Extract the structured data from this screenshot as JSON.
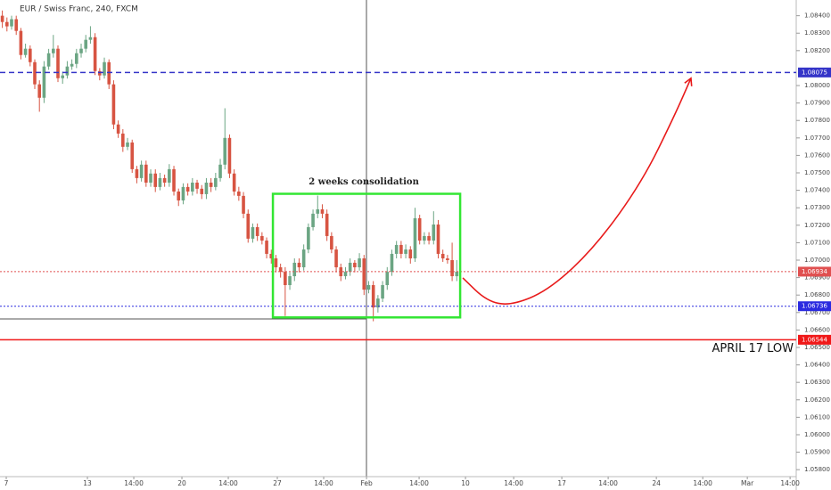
{
  "chart_data": {
    "type": "candlestick",
    "title": "EUR / Swiss Franc, 240, FXCM",
    "up_color": "#6ba583",
    "down_color": "#d75442",
    "xlim": [
      -0.5,
      171.2
    ],
    "ylim": [
      1.0576,
      1.0849
    ],
    "grid": false,
    "xticks": [
      {
        "value": 0.85,
        "label": "7"
      },
      {
        "value": 18.35,
        "label": "13"
      },
      {
        "value": 28.35,
        "label": "14:00"
      },
      {
        "value": 38.73,
        "label": "20"
      },
      {
        "value": 48.73,
        "label": "14:00"
      },
      {
        "value": 59.3,
        "label": "27"
      },
      {
        "value": 69.3,
        "label": "14:00"
      },
      {
        "value": 78.54,
        "label": "Feb"
      },
      {
        "value": 89.88,
        "label": "14:00"
      },
      {
        "value": 99.88,
        "label": "10"
      },
      {
        "value": 110.27,
        "label": "14:00"
      },
      {
        "value": 120.65,
        "label": "17"
      },
      {
        "value": 130.65,
        "label": "14:00"
      },
      {
        "value": 141.04,
        "label": "24"
      },
      {
        "value": 151.04,
        "label": "14:00"
      },
      {
        "value": 160.65,
        "label": "Mar"
      },
      {
        "value": 169.88,
        "label": "14:00"
      }
    ],
    "yticks": [
      {
        "value": 1.084,
        "label": "1.08400"
      },
      {
        "value": 1.083,
        "label": "1.08300"
      },
      {
        "value": 1.082,
        "label": "1.08200"
      },
      {
        "value": 1.08,
        "label": "1.08000"
      },
      {
        "value": 1.079,
        "label": "1.07900"
      },
      {
        "value": 1.078,
        "label": "1.07800"
      },
      {
        "value": 1.077,
        "label": "1.07700"
      },
      {
        "value": 1.076,
        "label": "1.07600"
      },
      {
        "value": 1.075,
        "label": "1.07500"
      },
      {
        "value": 1.074,
        "label": "1.07400"
      },
      {
        "value": 1.073,
        "label": "1.07300"
      },
      {
        "value": 1.072,
        "label": "1.07200"
      },
      {
        "value": 1.071,
        "label": "1.07100"
      },
      {
        "value": 1.07,
        "label": "1.07000"
      },
      {
        "value": 1.069,
        "label": "1.06900"
      },
      {
        "value": 1.068,
        "label": "1.06800"
      },
      {
        "value": 1.067,
        "label": "1.06700"
      },
      {
        "value": 1.066,
        "label": "1.06600"
      },
      {
        "value": 1.065,
        "label": "1.06500"
      },
      {
        "value": 1.064,
        "label": "1.06400"
      },
      {
        "value": 1.063,
        "label": "1.06300"
      },
      {
        "value": 1.062,
        "label": "1.06200"
      },
      {
        "value": 1.061,
        "label": "1.06100"
      },
      {
        "value": 1.06,
        "label": "1.06000"
      },
      {
        "value": 1.059,
        "label": "1.05900"
      },
      {
        "value": 1.058,
        "label": "1.05800"
      }
    ],
    "x": [
      0,
      1,
      2,
      3,
      4,
      5,
      6,
      7,
      8,
      9,
      10,
      11,
      12,
      13,
      14,
      15,
      16,
      17,
      18,
      19,
      20,
      21,
      22,
      23,
      24,
      25,
      26,
      27,
      28,
      29,
      30,
      31,
      32,
      33,
      34,
      35,
      36,
      37,
      38,
      39,
      40,
      41,
      42,
      43,
      44,
      45,
      46,
      47,
      48,
      49,
      50,
      51,
      52,
      53,
      54,
      55,
      56,
      57,
      58,
      59,
      60,
      61,
      62,
      63,
      64,
      65,
      66,
      67,
      68,
      69,
      70,
      71,
      72,
      73,
      74,
      75,
      76,
      77,
      78,
      79,
      80,
      81,
      82,
      83,
      84,
      85,
      86,
      87,
      88,
      89,
      90,
      91,
      92,
      93,
      94,
      95,
      96,
      97,
      98
    ],
    "ohlc": [
      [
        1.084,
        1.0843,
        1.0833,
        1.08364
      ],
      [
        1.08364,
        1.0839,
        1.0831,
        1.08339
      ],
      [
        1.08339,
        1.084,
        1.0832,
        1.0838
      ],
      [
        1.0838,
        1.084,
        1.0829,
        1.08313
      ],
      [
        1.08313,
        1.0833,
        1.0815,
        1.08175
      ],
      [
        1.08175,
        1.0824,
        1.0816,
        1.08211
      ],
      [
        1.08211,
        1.0823,
        1.0811,
        1.08134
      ],
      [
        1.08134,
        1.0815,
        1.0798,
        1.08007
      ],
      [
        1.08007,
        1.0803,
        1.0785,
        1.0793
      ],
      [
        1.0793,
        1.0814,
        1.079,
        1.08109
      ],
      [
        1.08109,
        1.0821,
        1.0809,
        1.08185
      ],
      [
        1.08185,
        1.0829,
        1.0816,
        1.08211
      ],
      [
        1.08211,
        1.0823,
        1.0802,
        1.08042
      ],
      [
        1.08042,
        1.0808,
        1.0801,
        1.08058
      ],
      [
        1.08058,
        1.0814,
        1.0804,
        1.08109
      ],
      [
        1.08109,
        1.0815,
        1.0809,
        1.08124
      ],
      [
        1.08124,
        1.0821,
        1.081,
        1.08185
      ],
      [
        1.08185,
        1.0824,
        1.0816,
        1.08211
      ],
      [
        1.08211,
        1.0829,
        1.0819,
        1.08262
      ],
      [
        1.08262,
        1.0834,
        1.0824,
        1.08277
      ],
      [
        1.08277,
        1.083,
        1.0806,
        1.08083
      ],
      [
        1.08083,
        1.081,
        1.0803,
        1.08058
      ],
      [
        1.08058,
        1.0816,
        1.0804,
        1.08134
      ],
      [
        1.08134,
        1.0815,
        1.0798,
        1.08007
      ],
      [
        1.08007,
        1.0803,
        1.0775,
        1.07777
      ],
      [
        1.07777,
        1.078,
        1.077,
        1.07725
      ],
      [
        1.07725,
        1.0775,
        1.0762,
        1.07649
      ],
      [
        1.07649,
        1.077,
        1.0763,
        1.07674
      ],
      [
        1.07674,
        1.0769,
        1.075,
        1.07521
      ],
      [
        1.07521,
        1.0754,
        1.0744,
        1.0747
      ],
      [
        1.0747,
        1.0757,
        1.0745,
        1.07547
      ],
      [
        1.07547,
        1.0757,
        1.0742,
        1.07444
      ],
      [
        1.07444,
        1.0752,
        1.0742,
        1.07496
      ],
      [
        1.07496,
        1.0752,
        1.0739,
        1.07419
      ],
      [
        1.07419,
        1.075,
        1.074,
        1.0747
      ],
      [
        1.0747,
        1.0749,
        1.0742,
        1.07444
      ],
      [
        1.07444,
        1.0755,
        1.0742,
        1.07521
      ],
      [
        1.07521,
        1.0754,
        1.0737,
        1.07393
      ],
      [
        1.07393,
        1.0741,
        1.0731,
        1.07342
      ],
      [
        1.07342,
        1.0744,
        1.0732,
        1.07419
      ],
      [
        1.07419,
        1.0744,
        1.0737,
        1.07393
      ],
      [
        1.07393,
        1.0747,
        1.0737,
        1.07444
      ],
      [
        1.07444,
        1.0746,
        1.0738,
        1.07409
      ],
      [
        1.07409,
        1.0743,
        1.0735,
        1.07378
      ],
      [
        1.07378,
        1.0747,
        1.0735,
        1.07444
      ],
      [
        1.07444,
        1.0747,
        1.0739,
        1.07419
      ],
      [
        1.07419,
        1.075,
        1.074,
        1.0747
      ],
      [
        1.0747,
        1.0758,
        1.0745,
        1.07547
      ],
      [
        1.07547,
        1.0787,
        1.0752,
        1.077
      ],
      [
        1.077,
        1.0772,
        1.0747,
        1.07496
      ],
      [
        1.07496,
        1.0752,
        1.0737,
        1.07393
      ],
      [
        1.07393,
        1.0742,
        1.0734,
        1.07368
      ],
      [
        1.07368,
        1.0739,
        1.0724,
        1.07266
      ],
      [
        1.07266,
        1.0729,
        1.071,
        1.07123
      ],
      [
        1.07123,
        1.0721,
        1.071,
        1.07189
      ],
      [
        1.07189,
        1.0721,
        1.0711,
        1.07138
      ],
      [
        1.07138,
        1.0716,
        1.0709,
        1.07112
      ],
      [
        1.07112,
        1.0713,
        1.0701,
        1.07036
      ],
      [
        1.07036,
        1.0706,
        1.0698,
        1.0701
      ],
      [
        1.0701,
        1.0703,
        1.0693,
        1.06959
      ],
      [
        1.06959,
        1.0698,
        1.069,
        1.06933
      ],
      [
        1.06933,
        1.0696,
        1.0668,
        1.06857
      ],
      [
        1.06857,
        1.0693,
        1.0683,
        1.06908
      ],
      [
        1.06908,
        1.0701,
        1.0688,
        1.06985
      ],
      [
        1.06985,
        1.0701,
        1.0693,
        1.06959
      ],
      [
        1.06959,
        1.0709,
        1.0694,
        1.07061
      ],
      [
        1.07061,
        1.0721,
        1.0704,
        1.07189
      ],
      [
        1.07189,
        1.0729,
        1.0717,
        1.07266
      ],
      [
        1.07266,
        1.0737,
        1.0724,
        1.07291
      ],
      [
        1.07291,
        1.0732,
        1.0724,
        1.07266
      ],
      [
        1.07266,
        1.0729,
        1.0711,
        1.07138
      ],
      [
        1.07138,
        1.0716,
        1.0704,
        1.07061
      ],
      [
        1.07061,
        1.0708,
        1.0693,
        1.06959
      ],
      [
        1.06959,
        1.0698,
        1.0688,
        1.06908
      ],
      [
        1.06908,
        1.0696,
        1.0689,
        1.06933
      ],
      [
        1.06933,
        1.0701,
        1.0691,
        1.06985
      ],
      [
        1.06985,
        1.07,
        1.0693,
        1.06959
      ],
      [
        1.06959,
        1.0704,
        1.0694,
        1.0701
      ],
      [
        1.0701,
        1.0703,
        1.068,
        1.06831
      ],
      [
        1.06831,
        1.0688,
        1.0681,
        1.06857
      ],
      [
        1.06857,
        1.0688,
        1.0665,
        1.06729
      ],
      [
        1.06729,
        1.068,
        1.067,
        1.0678
      ],
      [
        1.0678,
        1.0688,
        1.0676,
        1.06857
      ],
      [
        1.06857,
        1.0696,
        1.0683,
        1.06933
      ],
      [
        1.06933,
        1.0706,
        1.0691,
        1.07036
      ],
      [
        1.07036,
        1.0711,
        1.0701,
        1.07087
      ],
      [
        1.07087,
        1.0711,
        1.0701,
        1.07036
      ],
      [
        1.07036,
        1.0709,
        1.0701,
        1.07061
      ],
      [
        1.07061,
        1.0708,
        1.0698,
        1.0701
      ],
      [
        1.0701,
        1.073,
        1.0699,
        1.0724
      ],
      [
        1.0724,
        1.0726,
        1.0709,
        1.07112
      ],
      [
        1.07112,
        1.0716,
        1.0709,
        1.07138
      ],
      [
        1.07138,
        1.0716,
        1.0709,
        1.07112
      ],
      [
        1.07112,
        1.0728,
        1.0709,
        1.07204
      ],
      [
        1.07204,
        1.0723,
        1.0701,
        1.07036
      ],
      [
        1.07036,
        1.0706,
        1.0699,
        1.0701
      ],
      [
        1.0701,
        1.0703,
        1.0698,
        1.07
      ],
      [
        1.07,
        1.071,
        1.0688,
        1.06908
      ],
      [
        1.06908,
        1.07,
        1.0688,
        1.06934
      ]
    ],
    "price_lines": [
      {
        "value": 1.08075,
        "color": "#3434c8",
        "style": "dashed"
      },
      {
        "value": 1.06934,
        "color": "#e05050",
        "style": "dotted"
      },
      {
        "value": 1.06736,
        "color": "#2a2ae0",
        "style": "dotted"
      },
      {
        "value": 1.06544,
        "color": "#f01818",
        "style": "solid",
        "note": "APRIL 17 LOW"
      }
    ],
    "box": {
      "x": [
        58.35,
        98.73
      ],
      "y": [
        1.0738,
        1.06672
      ],
      "color": "#33e633",
      "label": "2 weeks consolidation"
    },
    "projection": {
      "color": "#e81a1a",
      "x": [
        99.3,
        104.5,
        109.7,
        118,
        128,
        138,
        145,
        148.5
      ],
      "y": [
        1.06898,
        1.06765,
        1.06739,
        1.0683,
        1.0708,
        1.0745,
        1.0783,
        1.08042
      ]
    }
  }
}
